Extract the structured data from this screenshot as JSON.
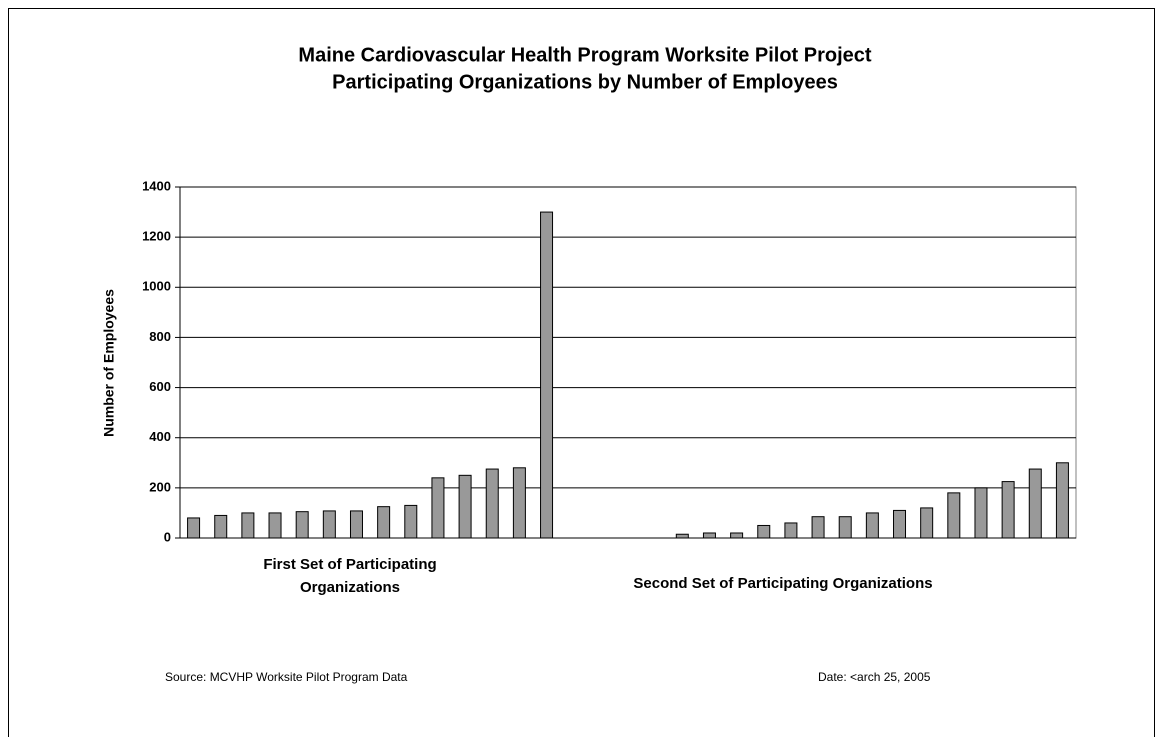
{
  "chart_data": {
    "type": "bar",
    "title": "Maine Cardiovascular Health Program Worksite Pilot Project",
    "subtitle": "Participating Organizations by Number of Employees",
    "y_label": "Number of Employees",
    "categories": [
      null,
      null,
      null,
      null,
      null,
      null,
      null,
      null,
      null,
      null,
      null,
      null,
      null,
      null,
      null,
      null,
      null,
      null,
      null,
      null,
      null,
      null,
      null,
      null,
      null,
      null,
      null,
      null,
      null,
      null,
      null,
      null,
      null
    ],
    "values": [
      80,
      90,
      100,
      100,
      105,
      108,
      108,
      125,
      130,
      240,
      250,
      275,
      280,
      1300,
      null,
      null,
      null,
      null,
      15,
      20,
      20,
      50,
      60,
      85,
      85,
      100,
      110,
      120,
      180,
      200,
      225,
      275,
      300
    ],
    "color": "#999999",
    "group_labels": [
      [
        "First Set of Participating",
        "Organizations"
      ],
      [
        "Second Set of Participating Organizations"
      ]
    ],
    "ylim": [
      0,
      1400
    ],
    "yticks": [
      0,
      200,
      400,
      600,
      800,
      1000,
      1200,
      1400
    ],
    "grid": true,
    "source": "Source: MCVHP Worksite  Pilot Program Data",
    "date": "Date: <arch 25, 2005"
  }
}
